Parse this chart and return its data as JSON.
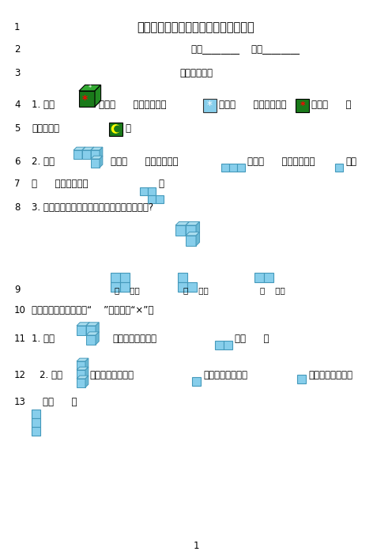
{
  "background_color": "#ffffff",
  "title": "苏教版四年级数学上册第三单元测试卷",
  "line1_num": "1",
  "line2_num": "2",
  "line2_text": "姓名________    成绩________",
  "line3_num": "3",
  "line3_text": "一、填空题。",
  "line4_num": "4",
  "line5_num": "5",
  "line6_num": "6",
  "line7_num": "7",
  "line8_num": "8",
  "line8_text": "3. 下面各图形分别是从哪个面观察物体得到的?",
  "line9_num": "9",
  "line9_labels": [
    "（    ）面",
    "（    ）面",
    "（    ）面"
  ],
  "line10_num": "10",
  "line10_text": "二、判断题。（对的画“    ”，错的画“×”）",
  "line11_num": "11",
  "line12_num": "12",
  "line13_num": "13",
  "page_num": "1",
  "cube_color": "#87CEEB",
  "cube_edge_color": "#4499BB",
  "cube_top_color": "#aaddee",
  "cube_right_color": "#6ab8d4",
  "text_color": "#000000"
}
